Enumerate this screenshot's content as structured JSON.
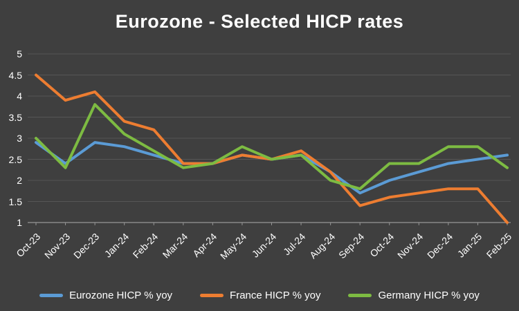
{
  "chart_data": {
    "type": "line",
    "title": "Eurozone - Selected HICP rates",
    "xlabel": "",
    "ylabel": "",
    "categories": [
      "Oct-23",
      "Nov-23",
      "Dec-23",
      "Jan-24",
      "Feb-24",
      "Mar-24",
      "Apr-24",
      "May-24",
      "Jun-24",
      "Jul-24",
      "Aug-24",
      "Sep-24",
      "Oct-24",
      "Nov-24",
      "Dec-24",
      "Jan-25",
      "Feb-25"
    ],
    "series": [
      {
        "name": "Eurozone HICP % yoy",
        "color": "#5B9BD5",
        "values": [
          2.9,
          2.4,
          2.9,
          2.8,
          2.6,
          2.4,
          2.4,
          2.6,
          2.5,
          2.6,
          2.2,
          1.7,
          2.0,
          2.2,
          2.4,
          2.5,
          2.6
        ]
      },
      {
        "name": "France HICP % yoy",
        "color": "#ED7D31",
        "values": [
          4.5,
          3.9,
          4.1,
          3.4,
          3.2,
          2.4,
          2.4,
          2.6,
          2.5,
          2.7,
          2.2,
          1.4,
          1.6,
          1.7,
          1.8,
          1.8,
          1.0
        ]
      },
      {
        "name": "Germany HICP % yoy",
        "color": "#7DBB42",
        "values": [
          3.0,
          2.3,
          3.8,
          3.1,
          2.7,
          2.3,
          2.4,
          2.8,
          2.5,
          2.6,
          2.0,
          1.8,
          2.4,
          2.4,
          2.8,
          2.8,
          2.3
        ]
      }
    ],
    "y_ticks": [
      "5",
      "4.5",
      "4",
      "3.5",
      "3",
      "2.5",
      "2",
      "1.5",
      "1"
    ],
    "ylim": [
      1,
      5
    ],
    "grid": true,
    "legend_position": "bottom",
    "colors": {
      "background": "#3F3F3F",
      "text": "#FFFFFF",
      "gridline": "#565656",
      "axis": "#969696"
    }
  }
}
